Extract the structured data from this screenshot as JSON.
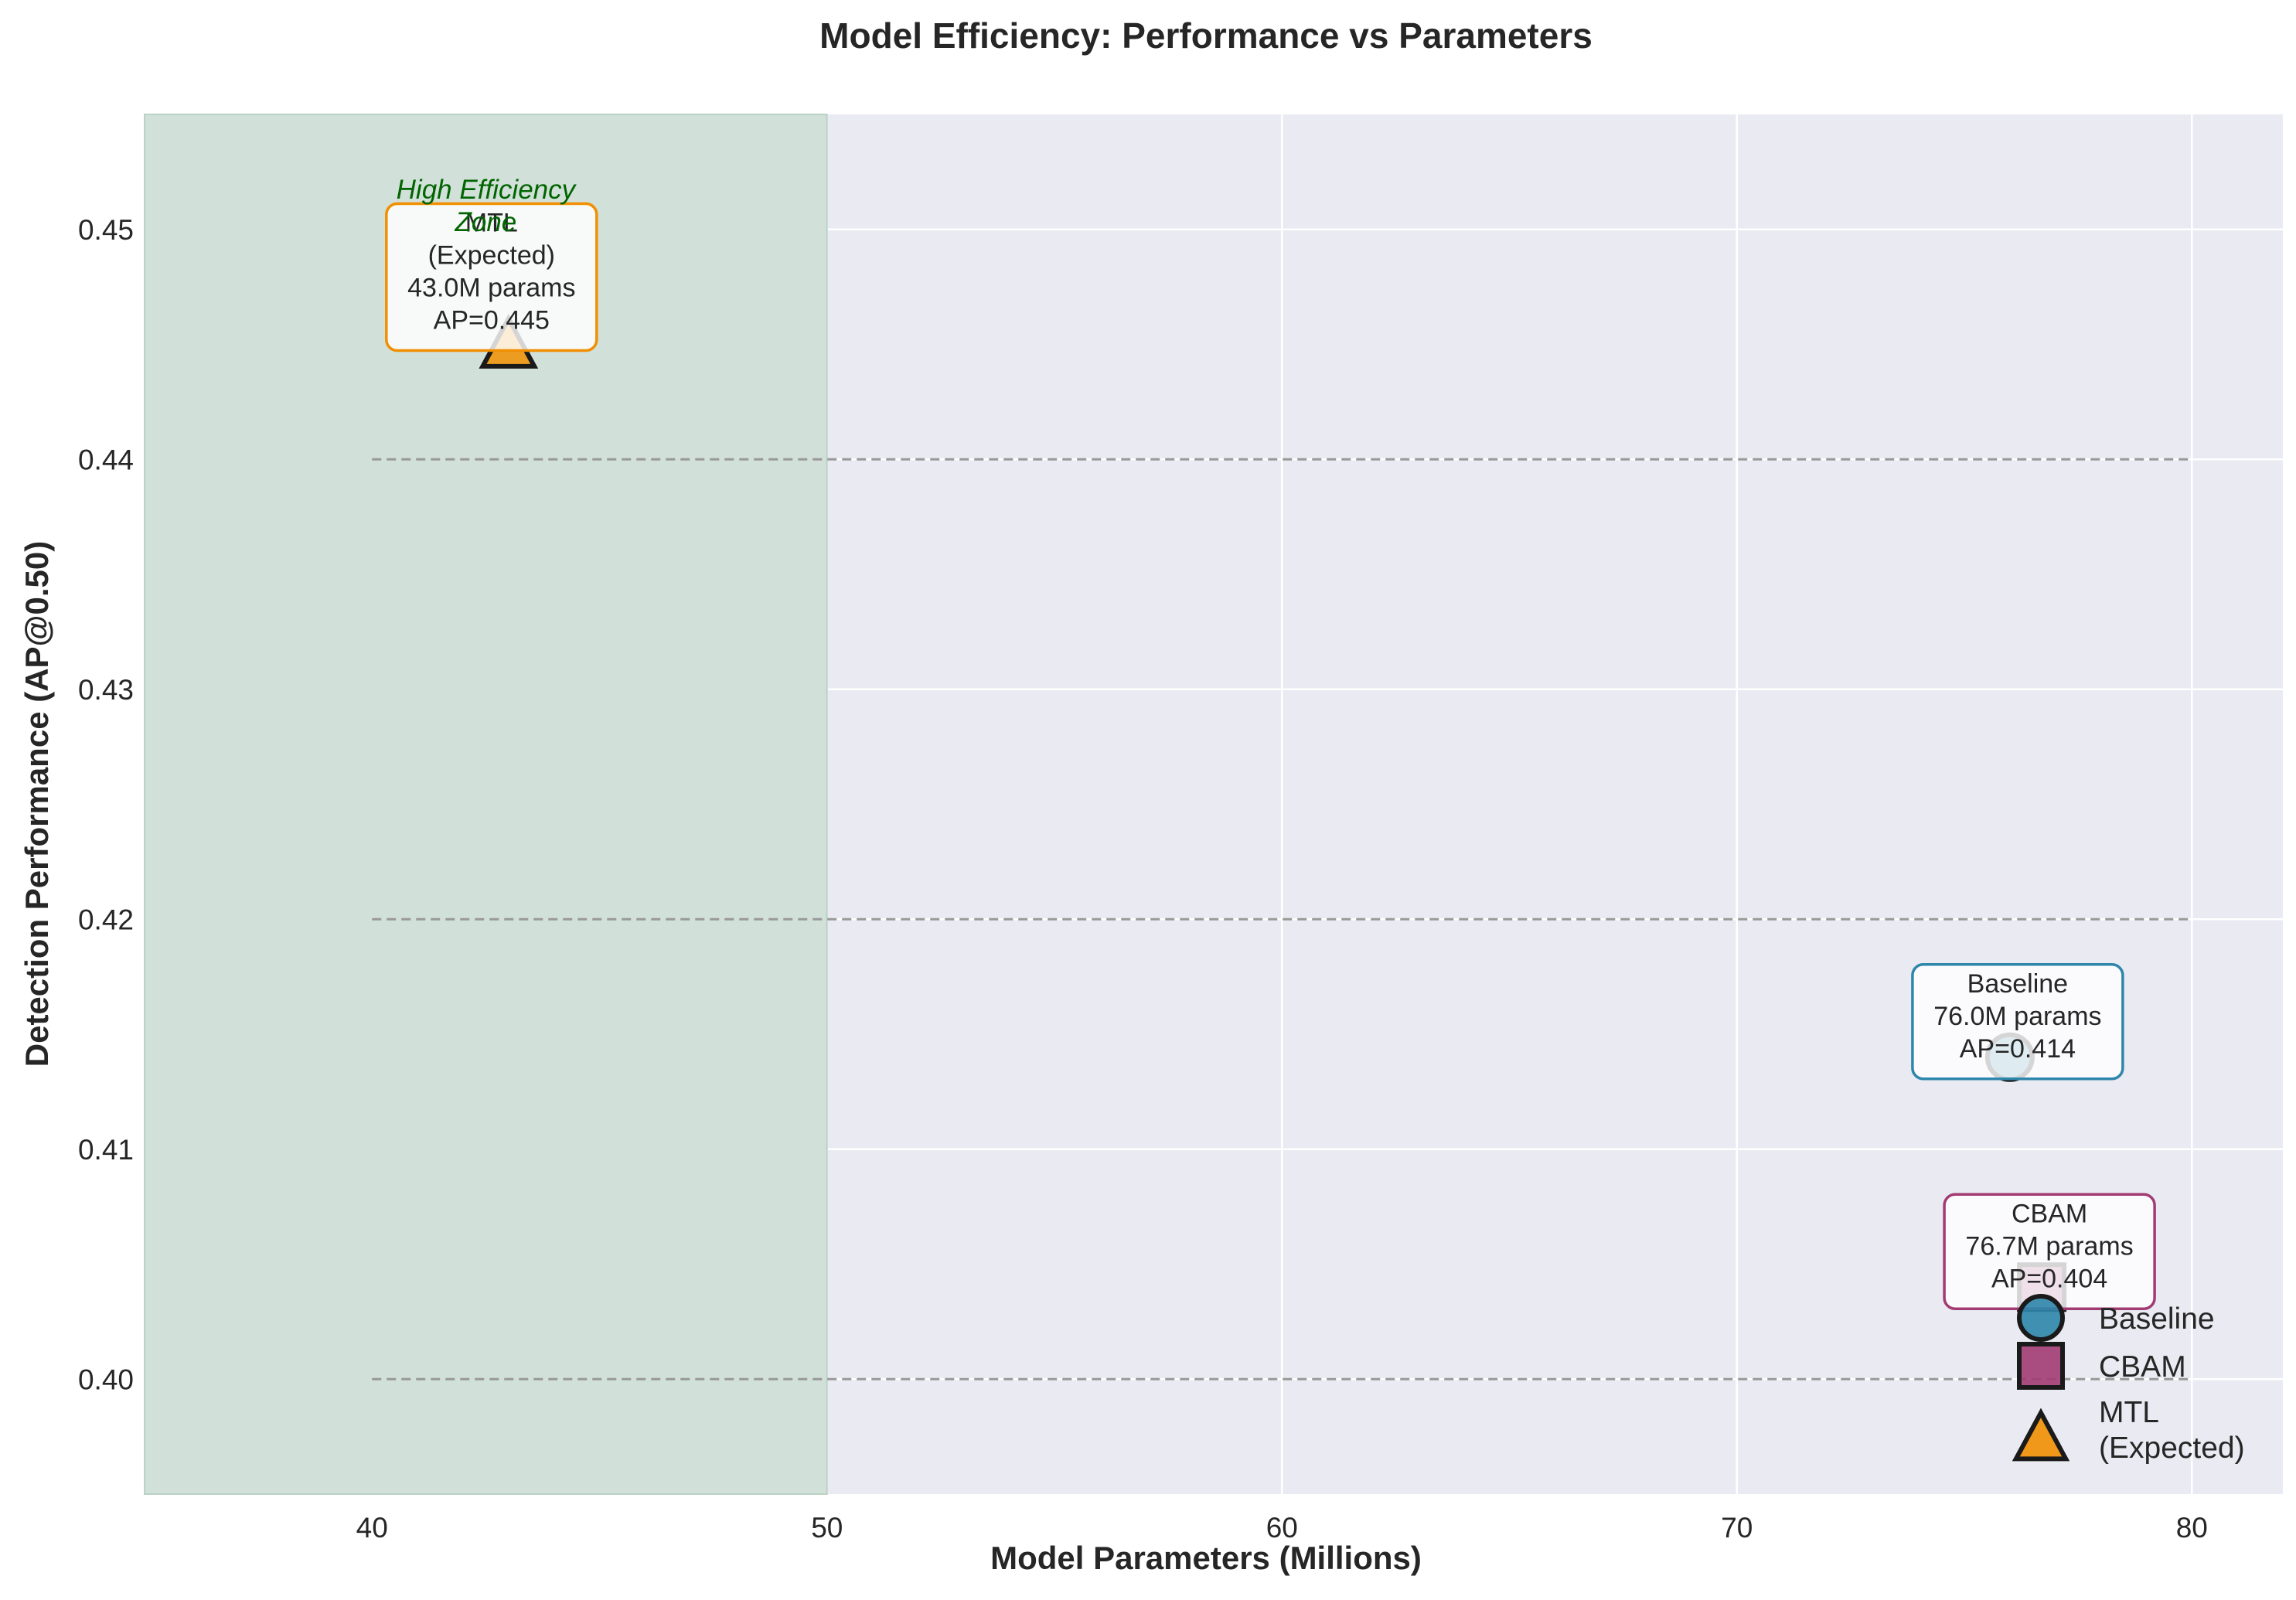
{
  "chart_data": {
    "type": "scatter",
    "title": "Model Efficiency: Performance vs Parameters",
    "xlabel": "Model Parameters (Millions)",
    "ylabel": "Detection Performance (AP@0.50)",
    "xlim": [
      35,
      82
    ],
    "ylim": [
      0.395,
      0.455
    ],
    "xticks": [
      40,
      50,
      60,
      70,
      80
    ],
    "xtick_labels": [
      "40",
      "50",
      "60",
      "70",
      "80"
    ],
    "yticks": [
      0.4,
      0.41,
      0.42,
      0.43,
      0.44,
      0.45
    ],
    "ytick_labels": [
      "0.40",
      "0.41",
      "0.42",
      "0.43",
      "0.44",
      "0.45"
    ],
    "grid": true,
    "legend_position": "lower-right",
    "series": [
      {
        "name": "Baseline",
        "marker": "circle",
        "color": "#2E86AB",
        "x": 76.0,
        "y": 0.414,
        "annotation": [
          "Baseline",
          "76.0M params",
          "AP=0.414"
        ]
      },
      {
        "name": "CBAM",
        "marker": "square",
        "color": "#A23B72",
        "x": 76.7,
        "y": 0.404,
        "annotation": [
          "CBAM",
          "76.7M params",
          "AP=0.404"
        ]
      },
      {
        "name": "MTL\n(Expected)",
        "marker": "triangle",
        "color": "#F18F01",
        "x": 43.0,
        "y": 0.445,
        "annotation": [
          "MTL",
          "(Expected)",
          "43.0M params",
          "AP=0.445"
        ]
      }
    ],
    "reference_lines": [
      0.4,
      0.42,
      0.44
    ],
    "reference_line_xrange": [
      40,
      80
    ],
    "shaded_region": {
      "x": [
        35,
        50
      ],
      "label": "High Efficiency\nZone",
      "color": "#2E8B57"
    }
  },
  "colors": {
    "plot_background": "#EAEAF2",
    "grid": "#FFFFFF",
    "zone_fill": "#D1E0D8",
    "zone_text": "#006400",
    "reference_line": "#999999"
  }
}
